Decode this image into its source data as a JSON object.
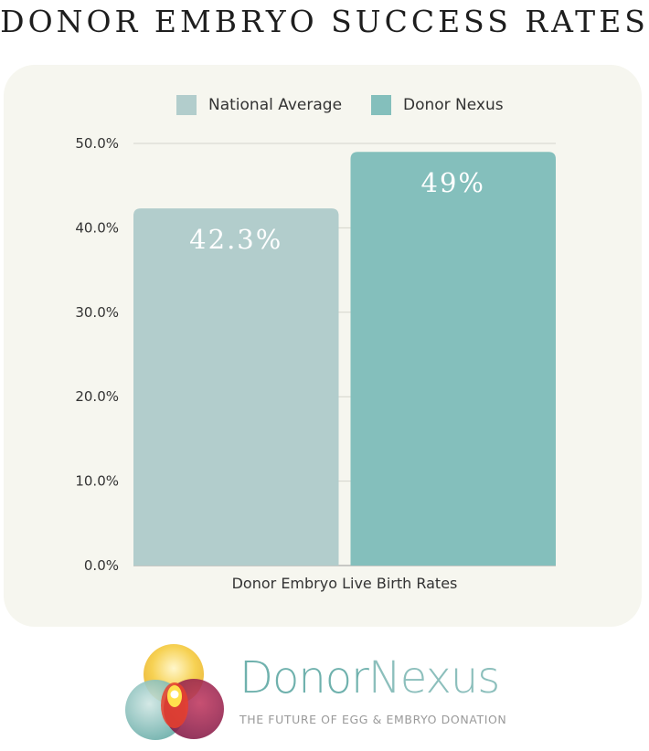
{
  "header": {
    "title": "DONOR EMBRYO SUCCESS RATES"
  },
  "chart_data": {
    "type": "bar",
    "categories": [
      "Donor Embryo Live Birth Rates"
    ],
    "series": [
      {
        "name": "National Average",
        "values": [
          42.3
        ],
        "label": "42.3%",
        "color": "#b2cdcc"
      },
      {
        "name": "Donor Nexus",
        "values": [
          49
        ],
        "label": "49%",
        "color": "#84bfbc"
      }
    ],
    "ylim": [
      0,
      50
    ],
    "yticks": [
      "0.0%",
      "10.0%",
      "20.0%",
      "30.0%",
      "40.0%",
      "50.0%"
    ],
    "xlabel": "",
    "ylabel": "",
    "grid": true,
    "legend_position": "top"
  },
  "brand": {
    "name_part1": "Donor",
    "name_part2": "Nexus",
    "tagline": "THE FUTURE OF EGG & EMBRYO DONATION"
  }
}
